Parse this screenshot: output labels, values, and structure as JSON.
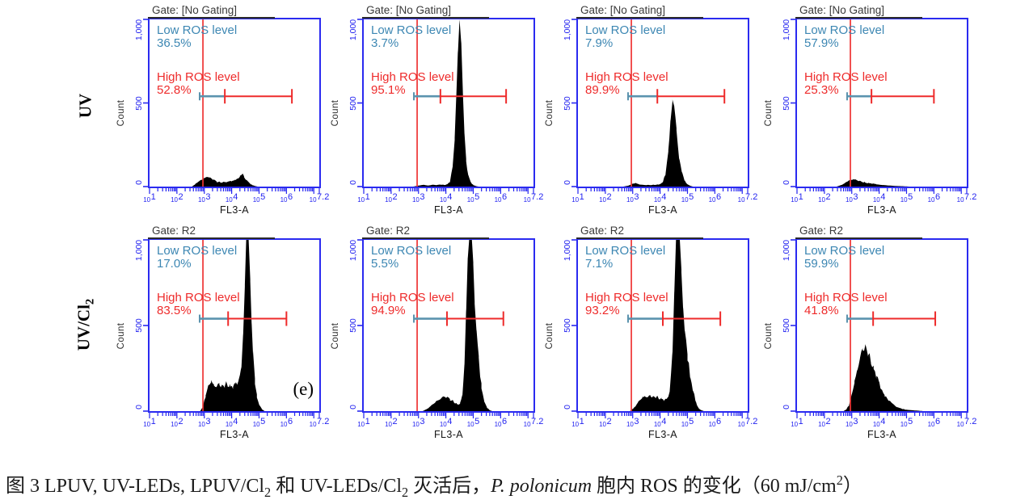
{
  "chart_data": {
    "type": "histogram-grid",
    "description": "Flow cytometry FL3-A fluorescence histograms of intracellular ROS, 2 rows x 4 columns",
    "shared": {
      "low_label": "Low ROS level",
      "high_label": "High ROS level",
      "ylabel": "Count",
      "xlabel": "FL3-A",
      "y_ticks": [
        "1,000",
        "500",
        "0"
      ],
      "x_base": "10",
      "x_tick_exponents": [
        "1",
        "2",
        "3",
        "4",
        "5",
        "6",
        "7.2"
      ],
      "x_log_range": [
        1,
        7.2
      ],
      "y_range": [
        0,
        1000
      ],
      "marker_y_counts": 540,
      "gate_line_log_x": 2.95
    },
    "colors": {
      "axis_blue": "#2a2af0",
      "tick_blue": "#2323f0",
      "gate_red": "#ee3434",
      "marker_red": "#ee2b2b",
      "marker_blue": "#5b93ae",
      "low_text": "#3d87b3",
      "high_text": "#ee2b2b",
      "histogram": "#000000"
    },
    "rows": [
      {
        "label_parts": [
          {
            "t": "UV"
          }
        ]
      },
      {
        "label_parts": [
          {
            "t": "UV/Cl"
          },
          {
            "t": "2",
            "sub": true
          }
        ]
      }
    ],
    "panels": [
      {
        "gate": "Gate: [No Gating]",
        "low_pct": "36.5%",
        "high_pct": "52.8%",
        "gate_x": 2.95,
        "blue_end": 3.75,
        "red_end": 6.2,
        "shape": [
          [
            2.55,
            0
          ],
          [
            2.65,
            12
          ],
          [
            2.75,
            25
          ],
          [
            2.9,
            38
          ],
          [
            3.0,
            48
          ],
          [
            3.1,
            58
          ],
          [
            3.2,
            50
          ],
          [
            3.3,
            42
          ],
          [
            3.45,
            30
          ],
          [
            3.6,
            26
          ],
          [
            3.75,
            28
          ],
          [
            3.9,
            30
          ],
          [
            4.0,
            34
          ],
          [
            4.1,
            40
          ],
          [
            4.2,
            48
          ],
          [
            4.3,
            62
          ],
          [
            4.4,
            72
          ],
          [
            4.45,
            60
          ],
          [
            4.55,
            40
          ],
          [
            4.65,
            20
          ],
          [
            4.75,
            10
          ],
          [
            4.85,
            4
          ],
          [
            4.95,
            0
          ]
        ]
      },
      {
        "gate": "Gate: [No Gating]",
        "low_pct": "3.7%",
        "high_pct": "95.1%",
        "gate_x": 2.95,
        "blue_end": 3.8,
        "red_end": 6.2,
        "shape": [
          [
            2.8,
            0
          ],
          [
            3.0,
            6
          ],
          [
            3.2,
            10
          ],
          [
            3.35,
            6
          ],
          [
            3.5,
            10
          ],
          [
            3.65,
            8
          ],
          [
            3.8,
            12
          ],
          [
            3.95,
            10
          ],
          [
            4.05,
            14
          ],
          [
            4.15,
            30
          ],
          [
            4.25,
            120
          ],
          [
            4.32,
            300
          ],
          [
            4.38,
            550
          ],
          [
            4.44,
            820
          ],
          [
            4.5,
            1000
          ],
          [
            4.56,
            880
          ],
          [
            4.62,
            560
          ],
          [
            4.68,
            300
          ],
          [
            4.74,
            160
          ],
          [
            4.82,
            70
          ],
          [
            4.9,
            28
          ],
          [
            5.0,
            10
          ],
          [
            5.1,
            3
          ],
          [
            5.2,
            0
          ]
        ]
      },
      {
        "gate": "Gate: [No Gating]",
        "low_pct": "7.9%",
        "high_pct": "89.9%",
        "gate_x": 2.95,
        "blue_end": 3.9,
        "red_end": 6.35,
        "shape": [
          [
            2.65,
            0
          ],
          [
            2.85,
            6
          ],
          [
            3.0,
            16
          ],
          [
            3.1,
            20
          ],
          [
            3.25,
            12
          ],
          [
            3.4,
            9
          ],
          [
            3.6,
            9
          ],
          [
            3.8,
            11
          ],
          [
            3.95,
            12
          ],
          [
            4.1,
            25
          ],
          [
            4.2,
            80
          ],
          [
            4.3,
            220
          ],
          [
            4.38,
            400
          ],
          [
            4.45,
            530
          ],
          [
            4.52,
            470
          ],
          [
            4.6,
            330
          ],
          [
            4.7,
            180
          ],
          [
            4.8,
            80
          ],
          [
            4.9,
            35
          ],
          [
            5.0,
            14
          ],
          [
            5.1,
            5
          ],
          [
            5.2,
            0
          ]
        ]
      },
      {
        "gate": "Gate: [No Gating]",
        "low_pct": "57.9%",
        "high_pct": "25.3%",
        "gate_x": 2.95,
        "blue_end": 3.72,
        "red_end": 6.0,
        "shape": [
          [
            2.45,
            0
          ],
          [
            2.6,
            8
          ],
          [
            2.75,
            20
          ],
          [
            2.85,
            30
          ],
          [
            2.95,
            38
          ],
          [
            3.05,
            42
          ],
          [
            3.15,
            38
          ],
          [
            3.3,
            32
          ],
          [
            3.45,
            27
          ],
          [
            3.6,
            22
          ],
          [
            3.75,
            18
          ],
          [
            3.9,
            14
          ],
          [
            4.1,
            10
          ],
          [
            4.3,
            7
          ],
          [
            4.5,
            5
          ],
          [
            4.7,
            3
          ],
          [
            4.9,
            2
          ],
          [
            5.1,
            0
          ]
        ]
      },
      {
        "gate": "Gate: R2",
        "low_pct": "17.0%",
        "high_pct": "83.5%",
        "annotation": "(e)",
        "gate_x": 2.95,
        "blue_end": 3.87,
        "red_end": 6.0,
        "shape": [
          [
            2.85,
            0
          ],
          [
            2.95,
            25
          ],
          [
            3.05,
            90
          ],
          [
            3.15,
            140
          ],
          [
            3.25,
            165
          ],
          [
            3.35,
            150
          ],
          [
            3.45,
            135
          ],
          [
            3.55,
            150
          ],
          [
            3.65,
            140
          ],
          [
            3.75,
            155
          ],
          [
            3.85,
            165
          ],
          [
            3.95,
            150
          ],
          [
            4.05,
            145
          ],
          [
            4.15,
            160
          ],
          [
            4.25,
            185
          ],
          [
            4.35,
            260
          ],
          [
            4.42,
            450
          ],
          [
            4.48,
            750
          ],
          [
            4.53,
            1000
          ],
          [
            4.62,
            1000
          ],
          [
            4.68,
            780
          ],
          [
            4.73,
            520
          ],
          [
            4.78,
            330
          ],
          [
            4.85,
            180
          ],
          [
            4.92,
            90
          ],
          [
            5.0,
            40
          ],
          [
            5.1,
            12
          ],
          [
            5.2,
            0
          ]
        ]
      },
      {
        "gate": "Gate: R2",
        "low_pct": "5.5%",
        "high_pct": "94.9%",
        "gate_x": 2.95,
        "blue_end": 4.04,
        "red_end": 6.1,
        "shape": [
          [
            3.15,
            0
          ],
          [
            3.3,
            12
          ],
          [
            3.5,
            35
          ],
          [
            3.7,
            60
          ],
          [
            3.85,
            75
          ],
          [
            4.0,
            78
          ],
          [
            4.15,
            70
          ],
          [
            4.3,
            55
          ],
          [
            4.42,
            40
          ],
          [
            4.52,
            45
          ],
          [
            4.6,
            90
          ],
          [
            4.68,
            280
          ],
          [
            4.74,
            600
          ],
          [
            4.8,
            900
          ],
          [
            4.85,
            1000
          ],
          [
            4.95,
            1000
          ],
          [
            5.0,
            850
          ],
          [
            5.05,
            650
          ],
          [
            5.12,
            480
          ],
          [
            5.2,
            300
          ],
          [
            5.3,
            150
          ],
          [
            5.4,
            60
          ],
          [
            5.5,
            20
          ],
          [
            5.6,
            5
          ],
          [
            5.7,
            0
          ]
        ]
      },
      {
        "gate": "Gate: R2",
        "low_pct": "7.1%",
        "high_pct": "93.2%",
        "gate_x": 2.95,
        "blue_end": 4.1,
        "red_end": 6.2,
        "shape": [
          [
            2.9,
            0
          ],
          [
            3.05,
            20
          ],
          [
            3.2,
            50
          ],
          [
            3.35,
            75
          ],
          [
            3.45,
            85
          ],
          [
            3.55,
            78
          ],
          [
            3.65,
            85
          ],
          [
            3.75,
            80
          ],
          [
            3.85,
            85
          ],
          [
            3.95,
            80
          ],
          [
            4.05,
            75
          ],
          [
            4.15,
            65
          ],
          [
            4.25,
            70
          ],
          [
            4.35,
            120
          ],
          [
            4.45,
            350
          ],
          [
            4.52,
            700
          ],
          [
            4.58,
            1000
          ],
          [
            4.72,
            1000
          ],
          [
            4.78,
            820
          ],
          [
            4.84,
            620
          ],
          [
            4.9,
            470
          ],
          [
            5.0,
            320
          ],
          [
            5.1,
            210
          ],
          [
            5.2,
            120
          ],
          [
            5.3,
            55
          ],
          [
            5.4,
            18
          ],
          [
            5.5,
            6
          ],
          [
            5.6,
            0
          ]
        ]
      },
      {
        "gate": "Gate: R2",
        "low_pct": "59.9%",
        "high_pct": "41.8%",
        "gate_x": 2.95,
        "blue_end": 3.78,
        "red_end": 6.05,
        "shape": [
          [
            2.7,
            0
          ],
          [
            2.8,
            10
          ],
          [
            2.9,
            35
          ],
          [
            3.0,
            90
          ],
          [
            3.1,
            160
          ],
          [
            3.2,
            235
          ],
          [
            3.3,
            300
          ],
          [
            3.4,
            350
          ],
          [
            3.5,
            370
          ],
          [
            3.6,
            340
          ],
          [
            3.7,
            300
          ],
          [
            3.8,
            255
          ],
          [
            3.9,
            210
          ],
          [
            4.0,
            165
          ],
          [
            4.1,
            130
          ],
          [
            4.2,
            95
          ],
          [
            4.35,
            65
          ],
          [
            4.5,
            40
          ],
          [
            4.65,
            25
          ],
          [
            4.8,
            15
          ],
          [
            5.0,
            8
          ],
          [
            5.2,
            5
          ],
          [
            5.4,
            3
          ],
          [
            5.6,
            0
          ]
        ]
      }
    ],
    "caption_parts": [
      {
        "t": "图 3 LPUV, UV-LEDs, LPUV/Cl"
      },
      {
        "t": "2",
        "sub": true
      },
      {
        "t": " 和 UV-LEDs/Cl"
      },
      {
        "t": "2",
        "sub": true
      },
      {
        "t": " 灭活后，"
      },
      {
        "t": "P. polonicum",
        "i": true
      },
      {
        "t": " 胞内 ROS 的变化（60 mJ/cm"
      },
      {
        "t": "2",
        "sup": true
      },
      {
        "t": "）"
      }
    ]
  }
}
